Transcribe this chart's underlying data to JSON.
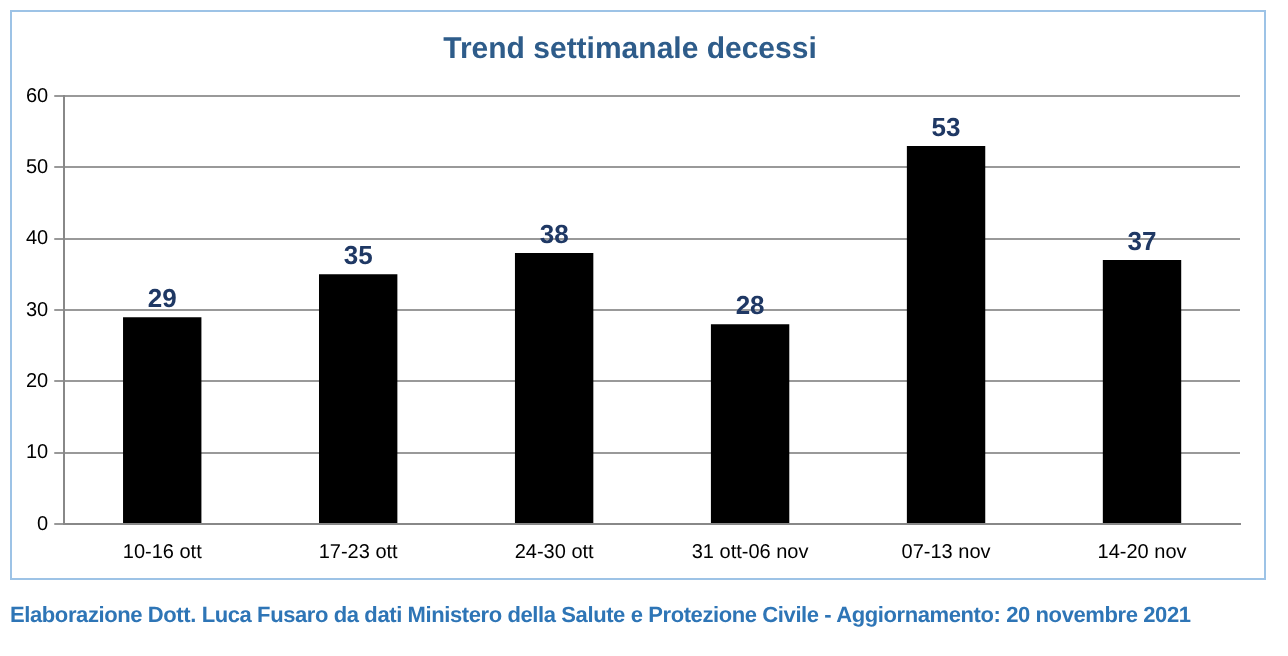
{
  "chart_data": {
    "type": "bar",
    "title": "Trend settimanale decessi",
    "categories": [
      "10-16 ott",
      "17-23 ott",
      "24-30 ott",
      "31 ott-06 nov",
      "07-13 nov",
      "14-20 nov"
    ],
    "values": [
      29,
      35,
      38,
      28,
      53,
      37
    ],
    "color": "#000000",
    "ylim": [
      0,
      60
    ],
    "yticks": [
      0,
      10,
      20,
      30,
      40,
      50,
      60
    ],
    "grid": "y",
    "data_labels": true,
    "annotations": [
      "Elaborazione Dott. Luca Fusaro da dati Ministero della Salute e Protezione Civile - Aggiornamento: 20 novembre 2021"
    ]
  }
}
